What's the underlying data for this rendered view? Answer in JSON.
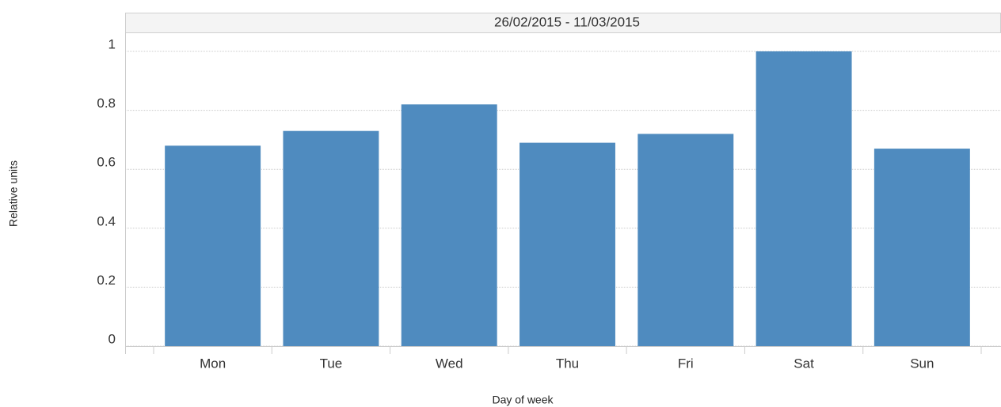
{
  "chart_data": {
    "type": "bar",
    "title": "26/02/2015 - 11/03/2015",
    "x_label": "Day of week",
    "y_label": "Relative units",
    "categories": [
      "Mon",
      "Tue",
      "Wed",
      "Thu",
      "Fri",
      "Sat",
      "Sun"
    ],
    "values": [
      0.68,
      0.73,
      0.82,
      0.69,
      0.72,
      1,
      0.67
    ],
    "color": "#4f8bbf",
    "ylim": [
      0,
      1.06
    ],
    "yticks": [
      0,
      0.2,
      0.4,
      0.6,
      0.8,
      1
    ],
    "grid": true
  }
}
